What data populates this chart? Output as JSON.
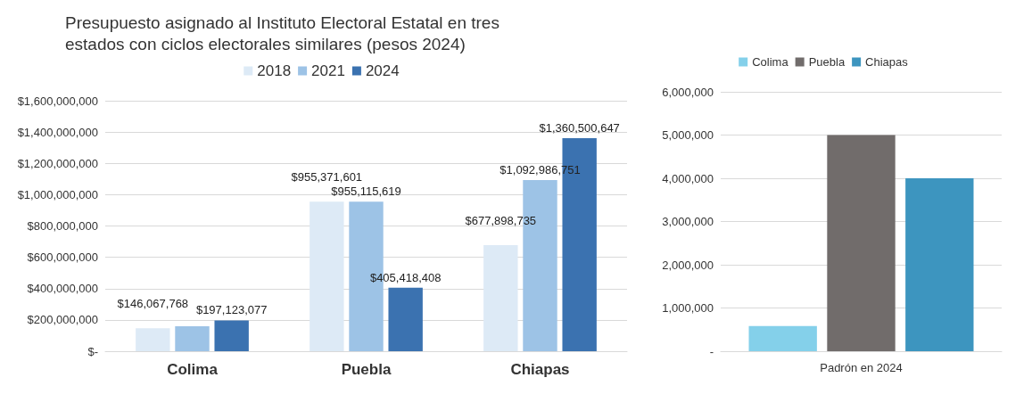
{
  "chart_data": [
    {
      "type": "bar",
      "title": "Presupuesto asignado al Instituto Electoral Estatal en tres\nestados con ciclos electorales similares (pesos 2024)",
      "categories": [
        "Colima",
        "Puebla",
        "Chiapas"
      ],
      "series": [
        {
          "name": "2018",
          "color": "#ddeaf6",
          "values": [
            146067768,
            955371601,
            677898735
          ],
          "value_labels": [
            "$146,067,768",
            "$955,371,601",
            "$677,898,735"
          ]
        },
        {
          "name": "2021",
          "color": "#9dc3e6",
          "values": [
            160000000,
            955115619,
            1092986751
          ],
          "value_labels": [
            null,
            "$955,115,619",
            "$1,092,986,751"
          ]
        },
        {
          "name": "2024",
          "color": "#3b72b0",
          "values": [
            197123077,
            405418408,
            1360500647
          ],
          "value_labels": [
            "$197,123,077",
            "$405,418,408",
            "$1,360,500,647"
          ]
        }
      ],
      "ylim": [
        0,
        1600000000
      ],
      "yticks": [
        {
          "value": 0,
          "label": "$-"
        },
        {
          "value": 200000000,
          "label": "$200,000,000"
        },
        {
          "value": 400000000,
          "label": "$400,000,000"
        },
        {
          "value": 600000000,
          "label": "$600,000,000"
        },
        {
          "value": 800000000,
          "label": "$800,000,000"
        },
        {
          "value": 1000000000,
          "label": "$1,000,000,000"
        },
        {
          "value": 1200000000,
          "label": "$1,200,000,000"
        },
        {
          "value": 1400000000,
          "label": "$1,400,000,000"
        },
        {
          "value": 1600000000,
          "label": "$1,600,000,000"
        }
      ],
      "grid": "y",
      "legend": "top"
    },
    {
      "type": "bar",
      "categories": [
        "Padrón en 2024"
      ],
      "series": [
        {
          "name": "Colima",
          "color": "#84d0ea",
          "values": [
            580000
          ]
        },
        {
          "name": "Puebla",
          "color": "#716c6b",
          "values": [
            5000000
          ]
        },
        {
          "name": "Chiapas",
          "color": "#3d95bf",
          "values": [
            4000000
          ]
        }
      ],
      "ylim": [
        0,
        6000000
      ],
      "yticks": [
        {
          "value": 0,
          "label": "-"
        },
        {
          "value": 1000000,
          "label": "1,000,000"
        },
        {
          "value": 2000000,
          "label": "2,000,000"
        },
        {
          "value": 3000000,
          "label": "3,000,000"
        },
        {
          "value": 4000000,
          "label": "4,000,000"
        },
        {
          "value": 5000000,
          "label": "5,000,000"
        },
        {
          "value": 6000000,
          "label": "6,000,000"
        }
      ],
      "grid": "y",
      "legend": "top"
    }
  ]
}
